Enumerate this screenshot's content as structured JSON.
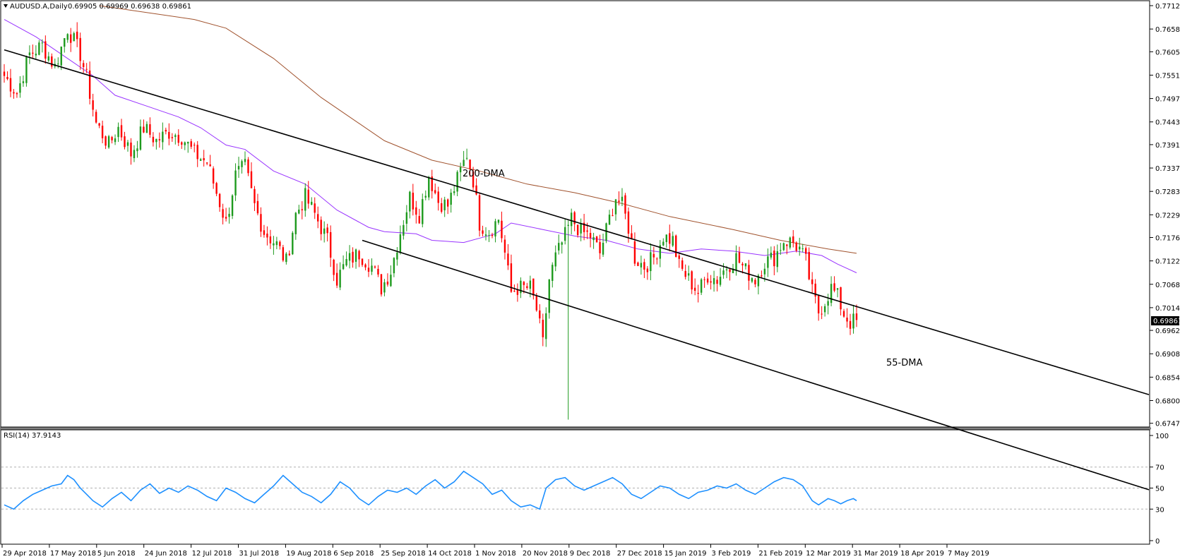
{
  "window": {
    "symbol_header": "AUDUSD.A,Daily",
    "ohlc_header": "0.69905 0.69969 0.69638 0.69861",
    "rsi_header": "RSI(14) 37.9143",
    "current_price_label": "0.69861"
  },
  "colors": {
    "bull": "#1e9a1e",
    "bear": "#ff0000",
    "ma55": "#9933ff",
    "ma200": "#a0522d",
    "channel": "#000000",
    "rsi": "#1e90ff",
    "grid": "#b0b0b0",
    "price_tag_bg": "#000000"
  },
  "chart_data": [
    {
      "type": "candlestick",
      "title": "AUDUSD.A,Daily",
      "y_ticks": [
        "0.77120",
        "0.76580",
        "0.76055",
        "0.75515",
        "0.74975",
        "0.74435",
        "0.73910",
        "0.73370",
        "0.72830",
        "0.72290",
        "0.71765",
        "0.71225",
        "0.70685",
        "0.70145",
        "0.69620",
        "0.69080",
        "0.68540",
        "0.68000",
        "0.67475"
      ],
      "ylim": [
        0.6747,
        0.7712
      ],
      "x_labels": [
        "29 Apr 2018",
        "17 May 2018",
        "5 Jun 2018",
        "24 Jun 2018",
        "12 Jul 2018",
        "31 Jul 2018",
        "19 Aug 2018",
        "6 Sep 2018",
        "25 Sep 2018",
        "14 Oct 2018",
        "1 Nov 2018",
        "20 Nov 2018",
        "9 Dec 2018",
        "27 Dec 2018",
        "15 Jan 2019",
        "3 Feb 2019",
        "21 Feb 2019",
        "12 Mar 2019",
        "31 Mar 2019",
        "18 Apr 2019",
        "7 May 2019"
      ],
      "last_close": 0.69861,
      "annotations": [
        "200-DMA",
        "55-DMA"
      ],
      "close_path": [
        [
          0,
          0.755
        ],
        [
          4,
          0.751
        ],
        [
          8,
          0.76
        ],
        [
          12,
          0.762
        ],
        [
          16,
          0.757
        ],
        [
          20,
          0.766
        ],
        [
          24,
          0.76
        ],
        [
          26,
          0.7545
        ],
        [
          29,
          0.744
        ],
        [
          33,
          0.739
        ],
        [
          36,
          0.743
        ],
        [
          40,
          0.737
        ],
        [
          44,
          0.743
        ],
        [
          48,
          0.74
        ],
        [
          52,
          0.742
        ],
        [
          56,
          0.741
        ],
        [
          60,
          0.737
        ],
        [
          64,
          0.735
        ],
        [
          67,
          0.728
        ],
        [
          70,
          0.721
        ],
        [
          73,
          0.732
        ],
        [
          76,
          0.734
        ],
        [
          79,
          0.725
        ],
        [
          82,
          0.719
        ],
        [
          86,
          0.716
        ],
        [
          89,
          0.712
        ],
        [
          92,
          0.723
        ],
        [
          95,
          0.727
        ],
        [
          98,
          0.723
        ],
        [
          102,
          0.717
        ],
        [
          105,
          0.708
        ],
        [
          108,
          0.712
        ],
        [
          112,
          0.714
        ],
        [
          116,
          0.711
        ],
        [
          119,
          0.706
        ],
        [
          122,
          0.71
        ],
        [
          125,
          0.719
        ],
        [
          128,
          0.727
        ],
        [
          131,
          0.723
        ],
        [
          134,
          0.732
        ],
        [
          137,
          0.726
        ],
        [
          140,
          0.725
        ],
        [
          143,
          0.731
        ],
        [
          146,
          0.737
        ],
        [
          148,
          0.731
        ],
        [
          150,
          0.721
        ],
        [
          153,
          0.719
        ],
        [
          156,
          0.722
        ],
        [
          158,
          0.714
        ],
        [
          160,
          0.705
        ],
        [
          162,
          0.706
        ],
        [
          166,
          0.706
        ],
        [
          168,
          0.701
        ],
        [
          170,
          0.693
        ],
        [
          172,
          0.708
        ],
        [
          174,
          0.713
        ],
        [
          177,
          0.718
        ],
        [
          179,
          0.722
        ],
        [
          182,
          0.719
        ],
        [
          185,
          0.718
        ],
        [
          188,
          0.714
        ],
        [
          191,
          0.722
        ],
        [
          193,
          0.727
        ],
        [
          195,
          0.725
        ],
        [
          197,
          0.72
        ],
        [
          199,
          0.713
        ],
        [
          202,
          0.711
        ],
        [
          205,
          0.713
        ],
        [
          208,
          0.718
        ],
        [
          211,
          0.717
        ],
        [
          213,
          0.711
        ],
        [
          216,
          0.708
        ],
        [
          219,
          0.705
        ],
        [
          222,
          0.709
        ],
        [
          225,
          0.708
        ],
        [
          228,
          0.711
        ],
        [
          231,
          0.713
        ],
        [
          234,
          0.71
        ],
        [
          237,
          0.708
        ],
        [
          240,
          0.712
        ],
        [
          243,
          0.713
        ],
        [
          246,
          0.717
        ],
        [
          249,
          0.7165
        ],
        [
          251,
          0.715
        ],
        [
          253,
          0.712
        ],
        [
          255,
          0.705
        ],
        [
          257,
          0.7005
        ],
        [
          259,
          0.703
        ],
        [
          261,
          0.706
        ],
        [
          263,
          0.704
        ],
        [
          265,
          0.7
        ],
        [
          267,
          0.698
        ],
        [
          269,
          0.6986
        ]
      ],
      "series": [
        {
          "name": "200-DMA",
          "points": [
            [
              30,
              0.7712
            ],
            [
              60,
              0.768
            ],
            [
              70,
              0.766
            ],
            [
              85,
              0.759
            ],
            [
              100,
              0.75
            ],
            [
              120,
              0.74
            ],
            [
              135,
              0.7355
            ],
            [
              150,
              0.733
            ],
            [
              165,
              0.73
            ],
            [
              180,
              0.728
            ],
            [
              195,
              0.7255
            ],
            [
              210,
              0.7225
            ],
            [
              230,
              0.7195
            ],
            [
              245,
              0.717
            ],
            [
              260,
              0.715
            ],
            [
              269,
              0.714
            ]
          ]
        },
        {
          "name": "55-DMA",
          "points": [
            [
              0,
              0.768
            ],
            [
              10,
              0.764
            ],
            [
              20,
              0.759
            ],
            [
              28,
              0.755
            ],
            [
              35,
              0.7505
            ],
            [
              45,
              0.748
            ],
            [
              55,
              0.7455
            ],
            [
              62,
              0.743
            ],
            [
              70,
              0.739
            ],
            [
              76,
              0.738
            ],
            [
              85,
              0.733
            ],
            [
              95,
              0.73
            ],
            [
              105,
              0.724
            ],
            [
              115,
              0.72
            ],
            [
              120,
              0.719
            ],
            [
              130,
              0.7185
            ],
            [
              135,
              0.717
            ],
            [
              145,
              0.7165
            ],
            [
              155,
              0.7185
            ],
            [
              160,
              0.721
            ],
            [
              170,
              0.7195
            ],
            [
              180,
              0.718
            ],
            [
              190,
              0.717
            ],
            [
              200,
              0.715
            ],
            [
              210,
              0.714
            ],
            [
              220,
              0.715
            ],
            [
              230,
              0.7145
            ],
            [
              240,
              0.7135
            ],
            [
              250,
              0.7145
            ],
            [
              258,
              0.7135
            ],
            [
              263,
              0.7115
            ],
            [
              269,
              0.7095
            ]
          ]
        },
        {
          "name": "upper-channel",
          "points": [
            [
              0,
              0.761
            ],
            [
              269,
              0.7017
            ]
          ]
        },
        {
          "name": "lower-channel",
          "points": [
            [
              113,
              0.717
            ],
            [
              269,
              0.6808
            ]
          ]
        }
      ]
    },
    {
      "type": "line",
      "title": "RSI(14) 37.9143",
      "y_ticks": [
        "100",
        "70",
        "50",
        "30",
        "0"
      ],
      "ylim": [
        0,
        100
      ],
      "levels": [
        70,
        50,
        30
      ],
      "series": [
        {
          "name": "RSI(14)",
          "points": [
            [
              0,
              34
            ],
            [
              3,
              30
            ],
            [
              6,
              38
            ],
            [
              9,
              44
            ],
            [
              12,
              48
            ],
            [
              15,
              52
            ],
            [
              18,
              54
            ],
            [
              20,
              62
            ],
            [
              22,
              58
            ],
            [
              24,
              50
            ],
            [
              26,
              44
            ],
            [
              28,
              38
            ],
            [
              31,
              32
            ],
            [
              34,
              40
            ],
            [
              37,
              46
            ],
            [
              40,
              38
            ],
            [
              43,
              48
            ],
            [
              46,
              54
            ],
            [
              49,
              45
            ],
            [
              52,
              50
            ],
            [
              55,
              46
            ],
            [
              58,
              52
            ],
            [
              61,
              48
            ],
            [
              64,
              42
            ],
            [
              67,
              38
            ],
            [
              70,
              50
            ],
            [
              73,
              46
            ],
            [
              76,
              40
            ],
            [
              79,
              36
            ],
            [
              82,
              44
            ],
            [
              85,
              52
            ],
            [
              88,
              62
            ],
            [
              91,
              54
            ],
            [
              94,
              46
            ],
            [
              97,
              42
            ],
            [
              100,
              36
            ],
            [
              103,
              44
            ],
            [
              106,
              56
            ],
            [
              109,
              50
            ],
            [
              112,
              40
            ],
            [
              115,
              34
            ],
            [
              118,
              42
            ],
            [
              121,
              48
            ],
            [
              124,
              46
            ],
            [
              127,
              50
            ],
            [
              130,
              44
            ],
            [
              133,
              52
            ],
            [
              136,
              58
            ],
            [
              139,
              50
            ],
            [
              142,
              56
            ],
            [
              145,
              66
            ],
            [
              148,
              60
            ],
            [
              151,
              54
            ],
            [
              154,
              44
            ],
            [
              157,
              48
            ],
            [
              160,
              38
            ],
            [
              163,
              32
            ],
            [
              166,
              34
            ],
            [
              169,
              30
            ],
            [
              171,
              50
            ],
            [
              174,
              58
            ],
            [
              177,
              60
            ],
            [
              180,
              52
            ],
            [
              183,
              48
            ],
            [
              186,
              52
            ],
            [
              189,
              56
            ],
            [
              192,
              60
            ],
            [
              195,
              54
            ],
            [
              198,
              44
            ],
            [
              201,
              40
            ],
            [
              204,
              46
            ],
            [
              207,
              52
            ],
            [
              210,
              50
            ],
            [
              213,
              44
            ],
            [
              216,
              40
            ],
            [
              219,
              46
            ],
            [
              222,
              48
            ],
            [
              225,
              52
            ],
            [
              228,
              50
            ],
            [
              231,
              54
            ],
            [
              234,
              48
            ],
            [
              237,
              44
            ],
            [
              240,
              50
            ],
            [
              243,
              56
            ],
            [
              246,
              60
            ],
            [
              249,
              58
            ],
            [
              252,
              52
            ],
            [
              255,
              38
            ],
            [
              257,
              34
            ],
            [
              260,
              40
            ],
            [
              262,
              38
            ],
            [
              264,
              35
            ],
            [
              266,
              38
            ],
            [
              268,
              40
            ],
            [
              269,
              38
            ]
          ]
        }
      ]
    }
  ]
}
